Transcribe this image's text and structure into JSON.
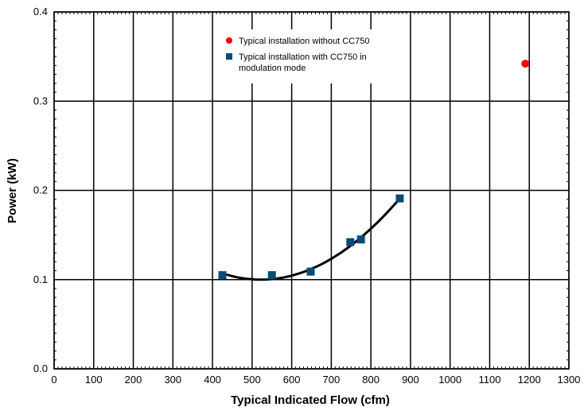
{
  "chart_data": {
    "type": "scatter",
    "xlabel": "Typical Indicated Flow (cfm)",
    "ylabel": "Power (kW)",
    "xlim": [
      0,
      1300
    ],
    "ylim": [
      0,
      0.4
    ],
    "x_ticks": [
      0,
      100,
      200,
      300,
      400,
      500,
      600,
      700,
      800,
      900,
      1000,
      1100,
      1200,
      1300
    ],
    "y_ticks": [
      0.0,
      0.1,
      0.2,
      0.3,
      0.4
    ],
    "y_tick_labels": [
      "0.0",
      "0.1",
      "0.2",
      "0.3",
      "0.4"
    ],
    "grid": true,
    "legend_position": "top-center",
    "series": [
      {
        "name": "Typical installation without CC750",
        "marker": "circle",
        "color": "#ff0000",
        "points": [
          {
            "x": 1190,
            "y": 0.342
          }
        ]
      },
      {
        "name": "Typical installation with CC750 in modulation mode",
        "name_lines": [
          "Typical installation with CC750 in",
          "modulation mode"
        ],
        "marker": "square",
        "color": "#004c7a",
        "points": [
          {
            "x": 425,
            "y": 0.105
          },
          {
            "x": 550,
            "y": 0.105
          },
          {
            "x": 648,
            "y": 0.109
          },
          {
            "x": 748,
            "y": 0.142
          },
          {
            "x": 775,
            "y": 0.145
          },
          {
            "x": 873,
            "y": 0.191
          }
        ]
      }
    ],
    "trendline": {
      "type": "polynomial",
      "color": "#000000",
      "x_range": [
        425,
        873
      ],
      "points": [
        {
          "x": 425,
          "y": 0.107
        },
        {
          "x": 520,
          "y": 0.1
        },
        {
          "x": 648,
          "y": 0.109
        },
        {
          "x": 873,
          "y": 0.191
        }
      ]
    }
  }
}
